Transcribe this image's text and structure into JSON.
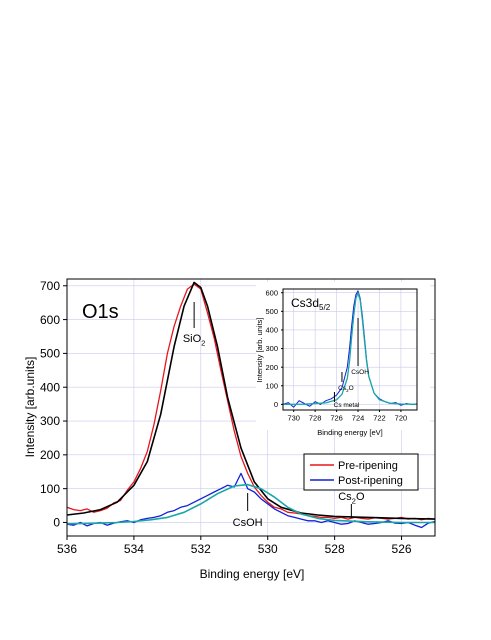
{
  "chart_data": [
    {
      "type": "line",
      "title": "O1s",
      "xlabel": "Binding energy [eV]",
      "ylabel": "Intensity [arb.units]",
      "xlim": [
        536,
        525
      ],
      "x_reversed": true,
      "ylim": [
        -40,
        720
      ],
      "x_ticks": [
        536,
        534,
        532,
        530,
        528,
        526
      ],
      "y_ticks": [
        0,
        100,
        200,
        300,
        400,
        500,
        600,
        700
      ],
      "grid": true,
      "legend": {
        "placement": "bottom-right",
        "entries": [
          "Pre-ripening",
          "Post-ripening"
        ]
      },
      "series": [
        {
          "name": "Pre-ripening",
          "color": "#e8161c",
          "x": [
            536,
            535.8,
            535.6,
            535.4,
            535.2,
            535,
            534.8,
            534.6,
            534.4,
            534.2,
            534,
            533.8,
            533.6,
            533.4,
            533.2,
            533,
            532.8,
            532.6,
            532.4,
            532.2,
            532,
            531.8,
            531.6,
            531.4,
            531.2,
            531,
            530.8,
            530.6,
            530.4,
            530.2,
            530,
            529.8,
            529.6,
            529.4,
            529.2,
            529,
            528.8,
            528.6,
            528.4,
            528.2,
            528,
            527.8,
            527.6,
            527.4,
            527.2,
            527,
            526.8,
            526.6,
            526.4,
            526.2,
            526,
            525.8,
            525.6,
            525.4,
            525.2,
            525
          ],
          "values": [
            45,
            38,
            35,
            40,
            30,
            35,
            42,
            58,
            65,
            95,
            120,
            160,
            210,
            290,
            390,
            500,
            580,
            640,
            690,
            705,
            690,
            620,
            545,
            450,
            360,
            270,
            195,
            145,
            105,
            80,
            60,
            45,
            40,
            30,
            28,
            25,
            20,
            18,
            15,
            15,
            12,
            15,
            10,
            15,
            12,
            10,
            14,
            12,
            10,
            12,
            15,
            10,
            12,
            8,
            12,
            10
          ]
        },
        {
          "name": "Post-ripening",
          "color": "#1020d8",
          "x": [
            536,
            535.8,
            535.6,
            535.4,
            535.2,
            535,
            534.8,
            534.6,
            534.4,
            534.2,
            534,
            533.8,
            533.6,
            533.4,
            533.2,
            533,
            532.8,
            532.6,
            532.4,
            532.2,
            532,
            531.8,
            531.6,
            531.4,
            531.2,
            531,
            530.8,
            530.6,
            530.4,
            530.2,
            530,
            529.8,
            529.6,
            529.4,
            529.2,
            529,
            528.8,
            528.6,
            528.4,
            528.2,
            528,
            527.8,
            527.6,
            527.4,
            527.2,
            527,
            526.8,
            526.6,
            526.4,
            526.2,
            526,
            525.8,
            525.6,
            525.4,
            525.2,
            525
          ],
          "values": [
            -5,
            -8,
            0,
            -10,
            -3,
            0,
            -8,
            -2,
            2,
            5,
            0,
            8,
            12,
            15,
            20,
            30,
            35,
            45,
            50,
            60,
            70,
            80,
            90,
            100,
            110,
            105,
            145,
            100,
            90,
            70,
            55,
            40,
            30,
            20,
            15,
            10,
            5,
            5,
            0,
            5,
            0,
            -5,
            -3,
            5,
            0,
            -5,
            -3,
            0,
            5,
            -2,
            -3,
            0,
            -8,
            -15,
            -2,
            3
          ]
        }
      ],
      "fit_curves": [
        {
          "color": "#000000",
          "x": [
            536,
            535.5,
            535,
            534.5,
            534,
            533.6,
            533.2,
            532.8,
            532.5,
            532.2,
            532,
            531.8,
            531.5,
            531.2,
            530.8,
            530.4,
            530,
            529.6,
            529,
            528.5,
            528,
            527,
            526,
            525
          ],
          "values": [
            22,
            28,
            38,
            60,
            110,
            180,
            320,
            520,
            640,
            710,
            695,
            640,
            520,
            370,
            220,
            120,
            70,
            45,
            28,
            22,
            18,
            15,
            12,
            10
          ]
        },
        {
          "color": "#1aa6a6",
          "x": [
            536,
            535.5,
            535,
            534.5,
            534,
            533.5,
            533,
            532.5,
            532,
            531.5,
            531,
            530.6,
            530.2,
            529.8,
            529.4,
            529,
            528.5,
            528,
            527,
            526,
            525
          ],
          "values": [
            -4,
            -3,
            -2,
            0,
            3,
            8,
            15,
            30,
            55,
            85,
            108,
            112,
            100,
            75,
            45,
            25,
            12,
            6,
            2,
            0,
            0
          ]
        }
      ],
      "annotations": [
        {
          "text": "SiO",
          "sub": "2",
          "x": 532.2
        },
        {
          "text": "CsOH",
          "x": 530.6
        },
        {
          "text": "Cs",
          "sub": "2",
          "after": "O",
          "x": 527.5
        }
      ]
    },
    {
      "type": "line",
      "title": "Cs3d",
      "title_sub": "5/2",
      "xlabel": "Binding energy [eV]",
      "ylabel": "Intensity [arb. units]",
      "xlim": [
        731,
        718.5
      ],
      "x_reversed": true,
      "ylim": [
        -30,
        620
      ],
      "x_ticks": [
        730,
        728,
        726,
        724,
        722,
        720
      ],
      "y_ticks": [
        0,
        100,
        200,
        300,
        400,
        500,
        600
      ],
      "grid": true,
      "series": [
        {
          "color": "#1020d8",
          "x": [
            731,
            730.5,
            730,
            729.5,
            729,
            728.5,
            728,
            727.5,
            727,
            726.5,
            726,
            725.5,
            725,
            724.8,
            724.6,
            724.4,
            724.2,
            724,
            723.8,
            723.6,
            723.4,
            723.2,
            723,
            722.5,
            722,
            721.5,
            721,
            720.5,
            720,
            719.5,
            719,
            718.5
          ],
          "values": [
            0,
            10,
            -15,
            20,
            5,
            -10,
            15,
            0,
            20,
            30,
            50,
            90,
            200,
            300,
            420,
            530,
            590,
            610,
            570,
            480,
            360,
            240,
            150,
            60,
            30,
            15,
            5,
            10,
            -5,
            5,
            0,
            2
          ]
        }
      ],
      "fit_curves": [
        {
          "color": "#1aa6a6",
          "x": [
            731,
            729,
            727,
            726,
            725.5,
            725,
            724.8,
            724.6,
            724.4,
            724.2,
            724,
            723.8,
            723.6,
            723.4,
            723.2,
            723,
            722.5,
            722,
            721,
            720,
            718.5
          ],
          "values": [
            0,
            1,
            8,
            25,
            55,
            140,
            230,
            360,
            480,
            570,
            600,
            560,
            460,
            340,
            230,
            150,
            60,
            25,
            6,
            2,
            0
          ]
        }
      ],
      "annotations": [
        {
          "text": "CsOH",
          "x": 724
        },
        {
          "text": "Cs",
          "sub": "2",
          "after": "O",
          "x": 725.5
        },
        {
          "text": "Cs metal",
          "x": 726.2
        }
      ]
    }
  ]
}
